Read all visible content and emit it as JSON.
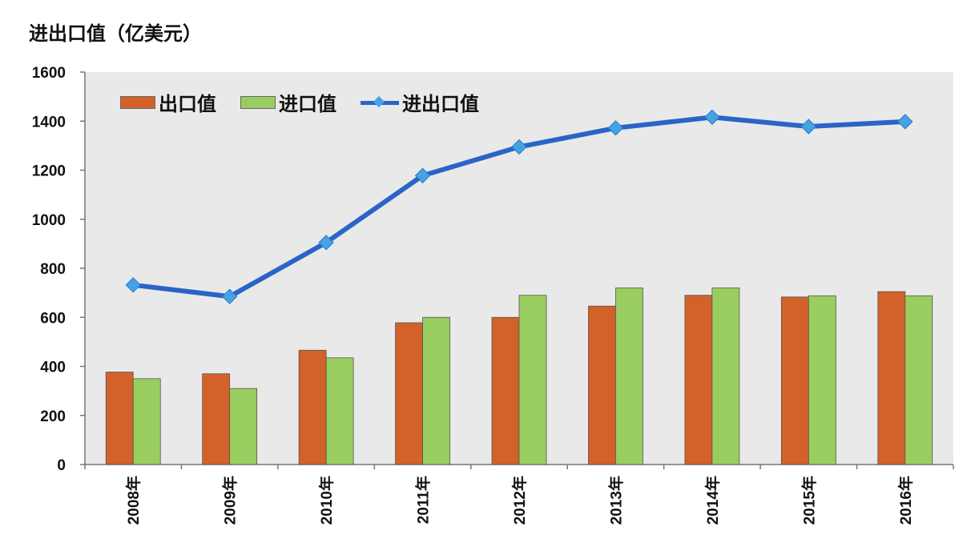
{
  "chart_data": {
    "type": "bar",
    "unit_label": "进出口值（亿美元）",
    "categories": [
      "2008年",
      "2009年",
      "2010年",
      "2011年",
      "2012年",
      "2013年",
      "2014年",
      "2015年",
      "2016年"
    ],
    "series": [
      {
        "name": "出口值",
        "type": "bar",
        "color": "#d2612a",
        "values": [
          377,
          370,
          466,
          578,
          600,
          646,
          690,
          683,
          705
        ]
      },
      {
        "name": "进口值",
        "type": "bar",
        "color": "#9acd60",
        "values": [
          350,
          310,
          435,
          600,
          690,
          720,
          720,
          688,
          688
        ]
      },
      {
        "name": "进出口值",
        "type": "line",
        "color": "#2a64c8",
        "marker_color": "#45a3e4",
        "values": [
          732,
          685,
          905,
          1178,
          1295,
          1372,
          1416,
          1378,
          1398
        ]
      }
    ],
    "ylim": [
      0,
      1600
    ],
    "yticks": [
      0,
      200,
      400,
      600,
      800,
      1000,
      1200,
      1400,
      1600
    ],
    "plot_background": "#e9e9e9",
    "legend_position": "top-left"
  }
}
